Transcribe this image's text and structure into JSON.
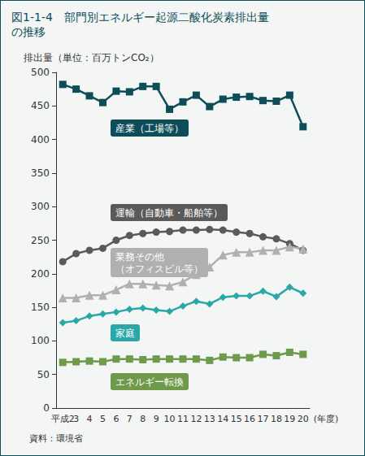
{
  "chart_data": {
    "type": "line",
    "title": "図1-1-4　部門別エネルギー起源二酸化炭素排出量の推移",
    "y_label": "排出量（単位：百万トンCO₂）",
    "x_label": "(年度)",
    "source": "資料：環境省",
    "categories": [
      "平成2",
      "3",
      "4",
      "5",
      "6",
      "7",
      "8",
      "9",
      "10",
      "11",
      "12",
      "13",
      "14",
      "15",
      "16",
      "17",
      "18",
      "19",
      "20"
    ],
    "series": [
      {
        "name": "産業（工場等）",
        "color": "#0c4d58",
        "marker": "square",
        "values": [
          482,
          475,
          465,
          455,
          472,
          471,
          479,
          479,
          445,
          456,
          466,
          449,
          460,
          463,
          464,
          458,
          457,
          466,
          419
        ]
      },
      {
        "name": "運輸（自動車・船舶等）",
        "color": "#5a5a5a",
        "marker": "circle",
        "values": [
          218,
          230,
          235,
          238,
          250,
          257,
          260,
          262,
          263,
          265,
          265,
          266,
          265,
          262,
          260,
          255,
          252,
          245,
          235
        ]
      },
      {
        "name": "業務その他（オフィスビル等）",
        "color": "#b0b0b0",
        "marker": "triangle",
        "values": [
          164,
          164,
          168,
          168,
          176,
          185,
          185,
          183,
          182,
          188,
          199,
          210,
          228,
          232,
          232,
          235,
          235,
          240,
          237
        ]
      },
      {
        "name": "家庭",
        "color": "#2aa8a8",
        "marker": "diamond",
        "values": [
          127,
          130,
          137,
          140,
          143,
          147,
          149,
          146,
          144,
          152,
          159,
          155,
          165,
          167,
          167,
          174,
          166,
          180,
          171
        ]
      },
      {
        "name": "エネルギー転換",
        "color": "#6e9a4a",
        "marker": "square",
        "values": [
          68,
          69,
          70,
          69,
          73,
          73,
          72,
          73,
          73,
          73,
          73,
          71,
          76,
          75,
          75,
          80,
          78,
          83,
          80
        ]
      }
    ],
    "ylim": [
      0,
      500
    ],
    "yticks": [
      0,
      50,
      100,
      150,
      200,
      250,
      300,
      350,
      400,
      450,
      500
    ],
    "grid": false
  }
}
